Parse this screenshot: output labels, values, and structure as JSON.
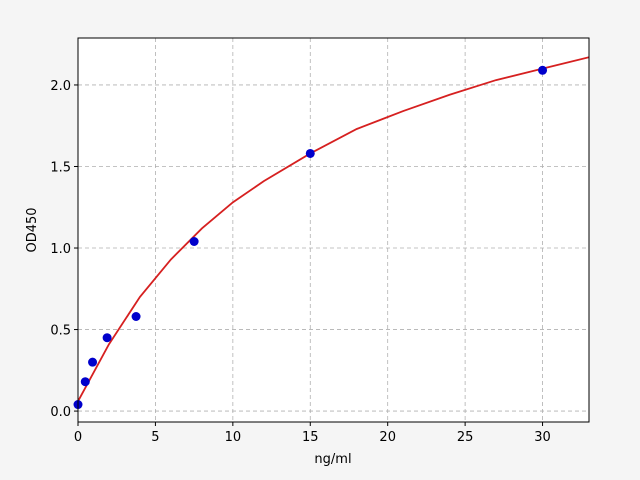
{
  "chart_data": {
    "type": "scatter",
    "xlabel": "ng/ml",
    "ylabel": "OD450",
    "xlim": [
      0,
      33
    ],
    "ylim": [
      -0.067,
      2.288
    ],
    "xticks": [
      0,
      5,
      10,
      15,
      20,
      25,
      30
    ],
    "yticks": [
      {
        "value": 0,
        "label": "0.0"
      },
      0.5,
      {
        "value": 1,
        "label": "1.0"
      },
      1.5,
      {
        "value": 2,
        "label": "2.0"
      }
    ],
    "grid": true,
    "series": [
      {
        "mode": "markers",
        "color": "#0000cc",
        "x": [
          0,
          0.47,
          0.94,
          1.88,
          3.75,
          7.5,
          15,
          30
        ],
        "values": [
          0.04,
          0.18,
          0.3,
          0.45,
          0.58,
          1.04,
          1.58,
          2.09
        ]
      },
      {
        "mode": "line",
        "color": "#d62020",
        "x": [
          0,
          2,
          4,
          6,
          8,
          10,
          12,
          15,
          18,
          21,
          24,
          27,
          30,
          33
        ],
        "values": [
          0.06,
          0.41,
          0.7,
          0.93,
          1.12,
          1.28,
          1.41,
          1.58,
          1.73,
          1.84,
          1.94,
          2.03,
          2.1,
          2.17
        ]
      }
    ]
  }
}
